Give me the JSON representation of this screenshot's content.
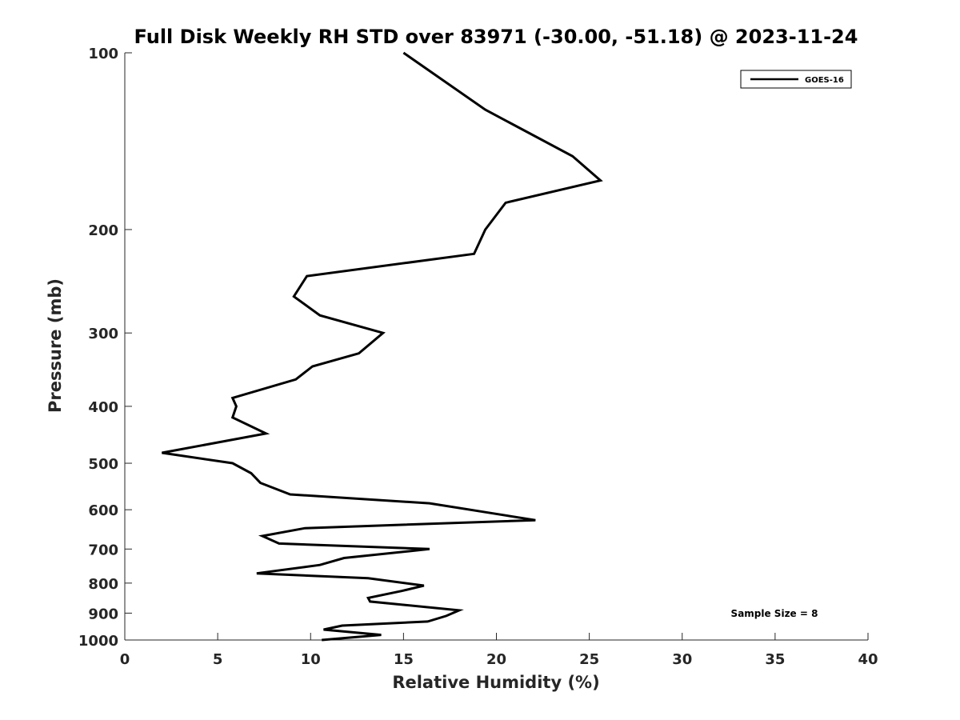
{
  "chart_data": {
    "type": "line",
    "title": "Full Disk Weekly RH STD over 83971 (-30.00, -51.18) @ 2023-11-24",
    "xlabel": "Relative Humidity (%)",
    "ylabel": "Pressure (mb)",
    "xlim": [
      0,
      40
    ],
    "ylim": [
      100,
      1000
    ],
    "yscale": "log",
    "y_reversed": true,
    "xticks": [
      0,
      5,
      10,
      15,
      20,
      25,
      30,
      35,
      40
    ],
    "yticks": [
      100,
      200,
      300,
      400,
      500,
      600,
      700,
      800,
      900,
      1000
    ],
    "grid": false,
    "legend": {
      "position": "top-right",
      "entries": [
        "GOES-16"
      ]
    },
    "annotation": "Sample Size = 8",
    "series": [
      {
        "name": "GOES-16",
        "color": "#000000",
        "points": [
          [
            15.0,
            100
          ],
          [
            19.4,
            125
          ],
          [
            24.1,
            150
          ],
          [
            25.6,
            165
          ],
          [
            20.5,
            180
          ],
          [
            19.4,
            200
          ],
          [
            18.8,
            220
          ],
          [
            9.8,
            240
          ],
          [
            9.1,
            260
          ],
          [
            10.5,
            280
          ],
          [
            13.9,
            300
          ],
          [
            12.6,
            325
          ],
          [
            10.1,
            342
          ],
          [
            9.2,
            360
          ],
          [
            5.8,
            387
          ],
          [
            6.0,
            400
          ],
          [
            5.8,
            418
          ],
          [
            7.6,
            445
          ],
          [
            2.0,
            480
          ],
          [
            5.8,
            500
          ],
          [
            6.8,
            520
          ],
          [
            7.3,
            540
          ],
          [
            8.9,
            565
          ],
          [
            16.4,
            585
          ],
          [
            19.3,
            605
          ],
          [
            22.1,
            625
          ],
          [
            9.7,
            645
          ],
          [
            7.4,
            665
          ],
          [
            8.3,
            685
          ],
          [
            16.4,
            700
          ],
          [
            11.8,
            725
          ],
          [
            10.5,
            745
          ],
          [
            7.1,
            770
          ],
          [
            13.1,
            785
          ],
          [
            16.1,
            808
          ],
          [
            14.9,
            825
          ],
          [
            13.1,
            848
          ],
          [
            13.2,
            860
          ],
          [
            18.0,
            890
          ],
          [
            17.3,
            910
          ],
          [
            16.3,
            930
          ],
          [
            11.7,
            945
          ],
          [
            10.7,
            960
          ],
          [
            13.8,
            980
          ],
          [
            10.6,
            1000
          ]
        ]
      }
    ]
  }
}
